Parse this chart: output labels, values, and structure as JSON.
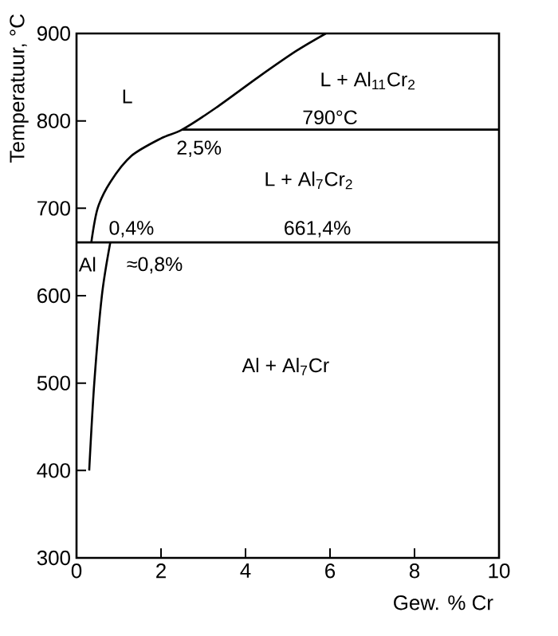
{
  "chart_data": {
    "type": "line",
    "xlabel": "Gew. % Cr",
    "ylabel": "Temperatuur, °C",
    "xlim": [
      0,
      10
    ],
    "ylim": [
      300,
      900
    ],
    "xticks": [
      0,
      2,
      4,
      6,
      8,
      10
    ],
    "yticks": [
      300,
      400,
      500,
      600,
      700,
      800,
      900
    ],
    "series": [
      {
        "color": "#000000",
        "x": [
          0.35,
          0.5,
          0.8,
          1.3,
          2.0,
          2.5,
          3.3,
          4.3,
          5.2,
          5.9
        ],
        "values": [
          661,
          700,
          730,
          760,
          780,
          790,
          815,
          850,
          880,
          900
        ]
      },
      {
        "color": "#000000",
        "x": [
          0.3,
          0.42,
          0.6,
          0.8
        ],
        "values": [
          400,
          500,
          600,
          661
        ]
      },
      {
        "color": "#000000",
        "x": [
          0,
          10
        ],
        "values": [
          661,
          661
        ]
      },
      {
        "color": "#000000",
        "x": [
          2.5,
          10
        ],
        "values": [
          790,
          790
        ]
      }
    ],
    "annotations": [
      "L",
      "L + Al$_{11}$Cr$_{2}$",
      "790°C",
      "2,5%",
      "L + Al$_{7}$Cr$_{2}$",
      "0,4%",
      "661,4%",
      "Al",
      "≈0,8%",
      "Al + Al$_{7}$Cr"
    ]
  }
}
